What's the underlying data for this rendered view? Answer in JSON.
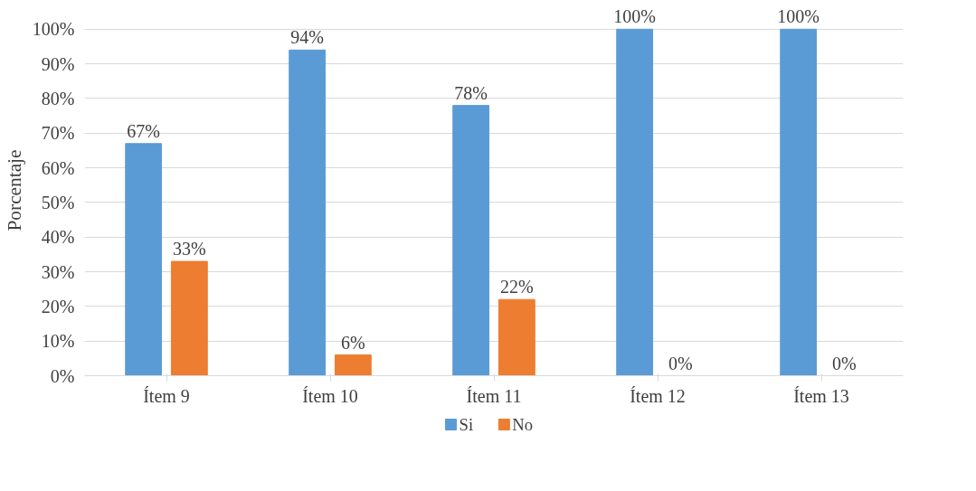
{
  "chart_data": {
    "type": "bar",
    "ylabel": "Porcentaje",
    "categories": [
      "Ítem 9",
      "Ítem 10",
      "Ítem 11",
      "Ítem 12",
      "Ítem 13"
    ],
    "series": [
      {
        "name": "Si",
        "color": "#5b9bd5",
        "values": [
          67,
          94,
          78,
          100,
          100
        ],
        "value_labels": [
          "67%",
          "94%",
          "78%",
          "100%",
          "100%"
        ]
      },
      {
        "name": "No",
        "color": "#ed7d31",
        "values": [
          33,
          6,
          22,
          0,
          0
        ],
        "value_labels": [
          "33%",
          "6%",
          "22%",
          "0%",
          "0%"
        ]
      }
    ],
    "ylim": [
      0,
      100
    ],
    "yticks": [
      {
        "value": 0,
        "label": "0%"
      },
      {
        "value": 10,
        "label": "10%"
      },
      {
        "value": 20,
        "label": "20%"
      },
      {
        "value": 30,
        "label": "30%"
      },
      {
        "value": 40,
        "label": "40%"
      },
      {
        "value": 50,
        "label": "50%"
      },
      {
        "value": 60,
        "label": "60%"
      },
      {
        "value": 70,
        "label": "70%"
      },
      {
        "value": 80,
        "label": "80%"
      },
      {
        "value": 90,
        "label": "90%"
      },
      {
        "value": 100,
        "label": "100%"
      }
    ],
    "grid": "y",
    "legend": "bottom"
  }
}
